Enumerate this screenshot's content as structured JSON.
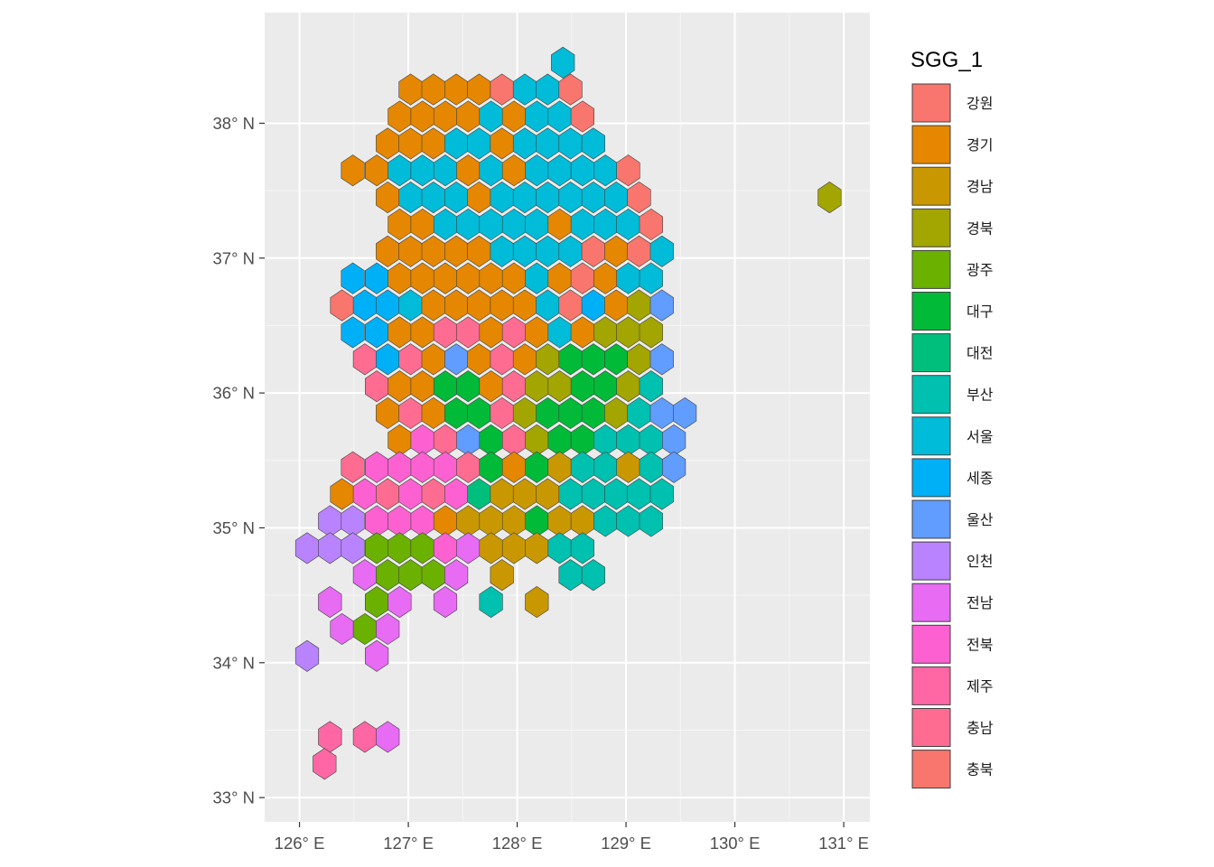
{
  "chart_data": {
    "type": "hexbin-map",
    "xlabel": "",
    "ylabel": "",
    "xlim": [
      125.68,
      131.24
    ],
    "ylim": [
      32.82,
      38.82
    ],
    "x_ticks": [
      126,
      127,
      128,
      129,
      130,
      131
    ],
    "x_tick_labels": [
      "126° E",
      "127° E",
      "128° E",
      "129° E",
      "130° E",
      "131° E"
    ],
    "y_ticks": [
      33,
      34,
      35,
      36,
      37,
      38
    ],
    "y_tick_labels": [
      "33° N",
      "34° N",
      "35° N",
      "36° N",
      "37° N",
      "38° N"
    ],
    "grid": true,
    "panel_background": "#ebebeb",
    "legend": {
      "title": "SGG_1",
      "placement": "right",
      "entries": [
        {
          "label": "강원",
          "color": "#F8766D"
        },
        {
          "label": "경기",
          "color": "#E58700"
        },
        {
          "label": "경남",
          "color": "#C99800"
        },
        {
          "label": "경북",
          "color": "#A3A500"
        },
        {
          "label": "광주",
          "color": "#6BB100"
        },
        {
          "label": "대구",
          "color": "#00BA38"
        },
        {
          "label": "대전",
          "color": "#00BF7D"
        },
        {
          "label": "부산",
          "color": "#00C0AF"
        },
        {
          "label": "서울",
          "color": "#00BCD8"
        },
        {
          "label": "세종",
          "color": "#00B0F6"
        },
        {
          "label": "울산",
          "color": "#619CFF"
        },
        {
          "label": "인천",
          "color": "#B983FF"
        },
        {
          "label": "전남",
          "color": "#E76BF3"
        },
        {
          "label": "전북",
          "color": "#FD61D1"
        },
        {
          "label": "제주",
          "color": "#FF67A4"
        },
        {
          "label": "충남",
          "color": "#FF6C91"
        },
        {
          "label": "충북",
          "color": "#F8766D"
        }
      ]
    },
    "hex_rows": [
      {
        "lat": 38.45,
        "cells": [
          [
            128.42,
            "서울"
          ]
        ]
      },
      {
        "lat": 38.25,
        "cells": [
          [
            127.02,
            "경기"
          ],
          [
            127.23,
            "경기"
          ],
          [
            127.44,
            "경기"
          ],
          [
            127.65,
            "경기"
          ],
          [
            127.86,
            "강원"
          ],
          [
            128.07,
            "서울"
          ],
          [
            128.28,
            "서울"
          ],
          [
            128.49,
            "강원"
          ]
        ]
      },
      {
        "lat": 38.05,
        "cells": [
          [
            126.92,
            "경기"
          ],
          [
            127.13,
            "경기"
          ],
          [
            127.34,
            "경기"
          ],
          [
            127.55,
            "경기"
          ],
          [
            127.76,
            "서울"
          ],
          [
            127.97,
            "경기"
          ],
          [
            128.18,
            "서울"
          ],
          [
            128.39,
            "서울"
          ],
          [
            128.6,
            "강원"
          ]
        ]
      },
      {
        "lat": 37.85,
        "cells": [
          [
            126.81,
            "경기"
          ],
          [
            127.02,
            "경기"
          ],
          [
            127.23,
            "경기"
          ],
          [
            127.44,
            "서울"
          ],
          [
            127.65,
            "서울"
          ],
          [
            127.86,
            "경기"
          ],
          [
            128.07,
            "서울"
          ],
          [
            128.28,
            "서울"
          ],
          [
            128.49,
            "서울"
          ],
          [
            128.7,
            "서울"
          ]
        ]
      },
      {
        "lat": 37.65,
        "cells": [
          [
            126.49,
            "경기"
          ],
          [
            126.71,
            "경기"
          ],
          [
            126.92,
            "서울"
          ],
          [
            127.13,
            "서울"
          ],
          [
            127.34,
            "서울"
          ],
          [
            127.55,
            "경기"
          ],
          [
            127.76,
            "서울"
          ],
          [
            127.97,
            "경기"
          ],
          [
            128.18,
            "서울"
          ],
          [
            128.39,
            "서울"
          ],
          [
            128.6,
            "서울"
          ],
          [
            128.81,
            "서울"
          ],
          [
            129.02,
            "강원"
          ]
        ]
      },
      {
        "lat": 37.45,
        "cells": [
          [
            126.81,
            "경기"
          ],
          [
            127.02,
            "서울"
          ],
          [
            127.23,
            "서울"
          ],
          [
            127.44,
            "서울"
          ],
          [
            127.65,
            "경기"
          ],
          [
            127.86,
            "서울"
          ],
          [
            128.07,
            "서울"
          ],
          [
            128.28,
            "서울"
          ],
          [
            128.49,
            "서울"
          ],
          [
            128.7,
            "서울"
          ],
          [
            128.91,
            "서울"
          ],
          [
            129.12,
            "강원"
          ],
          [
            130.87,
            "경북"
          ]
        ]
      },
      {
        "lat": 37.25,
        "cells": [
          [
            126.92,
            "경기"
          ],
          [
            127.13,
            "경기"
          ],
          [
            127.34,
            "서울"
          ],
          [
            127.55,
            "서울"
          ],
          [
            127.76,
            "서울"
          ],
          [
            127.97,
            "서울"
          ],
          [
            128.18,
            "서울"
          ],
          [
            128.39,
            "경기"
          ],
          [
            128.6,
            "서울"
          ],
          [
            128.81,
            "서울"
          ],
          [
            129.02,
            "서울"
          ],
          [
            129.23,
            "강원"
          ]
        ]
      },
      {
        "lat": 37.05,
        "cells": [
          [
            126.81,
            "경기"
          ],
          [
            127.02,
            "경기"
          ],
          [
            127.23,
            "경기"
          ],
          [
            127.44,
            "경기"
          ],
          [
            127.65,
            "경기"
          ],
          [
            127.86,
            "서울"
          ],
          [
            128.07,
            "서울"
          ],
          [
            128.28,
            "서울"
          ],
          [
            128.49,
            "서울"
          ],
          [
            128.7,
            "강원"
          ],
          [
            128.91,
            "경기"
          ],
          [
            129.12,
            "강원"
          ],
          [
            129.33,
            "서울"
          ]
        ]
      },
      {
        "lat": 36.85,
        "cells": [
          [
            126.49,
            "세종"
          ],
          [
            126.71,
            "세종"
          ],
          [
            126.92,
            "경기"
          ],
          [
            127.13,
            "경기"
          ],
          [
            127.34,
            "경기"
          ],
          [
            127.55,
            "경기"
          ],
          [
            127.76,
            "경기"
          ],
          [
            127.97,
            "경기"
          ],
          [
            128.18,
            "서울"
          ],
          [
            128.39,
            "경기"
          ],
          [
            128.6,
            "충북"
          ],
          [
            128.81,
            "경기"
          ],
          [
            129.02,
            "서울"
          ],
          [
            129.23,
            "서울"
          ]
        ]
      },
      {
        "lat": 36.65,
        "cells": [
          [
            126.39,
            "충북"
          ],
          [
            126.6,
            "세종"
          ],
          [
            126.81,
            "세종"
          ],
          [
            127.02,
            "서울"
          ],
          [
            127.23,
            "경기"
          ],
          [
            127.44,
            "경기"
          ],
          [
            127.65,
            "경기"
          ],
          [
            127.86,
            "경기"
          ],
          [
            128.07,
            "경기"
          ],
          [
            128.28,
            "서울"
          ],
          [
            128.49,
            "충북"
          ],
          [
            128.7,
            "세종"
          ],
          [
            128.91,
            "경기"
          ],
          [
            129.12,
            "경북"
          ],
          [
            129.33,
            "울산"
          ]
        ]
      },
      {
        "lat": 36.45,
        "cells": [
          [
            126.49,
            "세종"
          ],
          [
            126.71,
            "세종"
          ],
          [
            126.92,
            "경기"
          ],
          [
            127.13,
            "경기"
          ],
          [
            127.34,
            "충남"
          ],
          [
            127.55,
            "충남"
          ],
          [
            127.76,
            "경기"
          ],
          [
            127.97,
            "충남"
          ],
          [
            128.18,
            "경기"
          ],
          [
            128.39,
            "서울"
          ],
          [
            128.6,
            "경기"
          ],
          [
            128.81,
            "경북"
          ],
          [
            129.02,
            "경북"
          ],
          [
            129.23,
            "경북"
          ]
        ]
      },
      {
        "lat": 36.25,
        "cells": [
          [
            126.6,
            "충남"
          ],
          [
            126.81,
            "세종"
          ],
          [
            127.02,
            "충남"
          ],
          [
            127.23,
            "경기"
          ],
          [
            127.44,
            "울산"
          ],
          [
            127.65,
            "경기"
          ],
          [
            127.86,
            "충남"
          ],
          [
            128.07,
            "경기"
          ],
          [
            128.28,
            "경북"
          ],
          [
            128.49,
            "대구"
          ],
          [
            128.7,
            "대구"
          ],
          [
            128.91,
            "대구"
          ],
          [
            129.12,
            "경북"
          ],
          [
            129.33,
            "울산"
          ]
        ]
      },
      {
        "lat": 36.05,
        "cells": [
          [
            126.71,
            "충남"
          ],
          [
            126.92,
            "경기"
          ],
          [
            127.13,
            "경기"
          ],
          [
            127.34,
            "대구"
          ],
          [
            127.55,
            "대구"
          ],
          [
            127.76,
            "경기"
          ],
          [
            127.97,
            "충남"
          ],
          [
            128.18,
            "경북"
          ],
          [
            128.39,
            "경북"
          ],
          [
            128.6,
            "대구"
          ],
          [
            128.81,
            "대구"
          ],
          [
            129.02,
            "경북"
          ],
          [
            129.23,
            "부산"
          ]
        ]
      },
      {
        "lat": 35.85,
        "cells": [
          [
            126.81,
            "경기"
          ],
          [
            127.02,
            "충남"
          ],
          [
            127.23,
            "경기"
          ],
          [
            127.44,
            "대구"
          ],
          [
            127.65,
            "대구"
          ],
          [
            127.86,
            "충남"
          ],
          [
            128.07,
            "경북"
          ],
          [
            128.28,
            "대구"
          ],
          [
            128.49,
            "대구"
          ],
          [
            128.7,
            "대구"
          ],
          [
            128.91,
            "경북"
          ],
          [
            129.12,
            "부산"
          ],
          [
            129.33,
            "울산"
          ],
          [
            129.54,
            "울산"
          ]
        ]
      },
      {
        "lat": 35.65,
        "cells": [
          [
            126.92,
            "경기"
          ],
          [
            127.13,
            "전북"
          ],
          [
            127.34,
            "충남"
          ],
          [
            127.55,
            "울산"
          ],
          [
            127.76,
            "대구"
          ],
          [
            127.97,
            "충남"
          ],
          [
            128.18,
            "경북"
          ],
          [
            128.39,
            "대구"
          ],
          [
            128.6,
            "대구"
          ],
          [
            128.81,
            "부산"
          ],
          [
            129.02,
            "부산"
          ],
          [
            129.23,
            "부산"
          ],
          [
            129.44,
            "울산"
          ]
        ]
      },
      {
        "lat": 35.45,
        "cells": [
          [
            126.49,
            "충남"
          ],
          [
            126.71,
            "전북"
          ],
          [
            126.92,
            "전북"
          ],
          [
            127.13,
            "전북"
          ],
          [
            127.34,
            "전북"
          ],
          [
            127.55,
            "충남"
          ],
          [
            127.76,
            "대구"
          ],
          [
            127.97,
            "경기"
          ],
          [
            128.18,
            "대구"
          ],
          [
            128.39,
            "경남"
          ],
          [
            128.6,
            "부산"
          ],
          [
            128.81,
            "부산"
          ],
          [
            129.02,
            "경남"
          ],
          [
            129.23,
            "부산"
          ],
          [
            129.44,
            "울산"
          ]
        ]
      },
      {
        "lat": 35.25,
        "cells": [
          [
            126.39,
            "경기"
          ],
          [
            126.6,
            "전북"
          ],
          [
            126.81,
            "충남"
          ],
          [
            127.02,
            "전북"
          ],
          [
            127.23,
            "충남"
          ],
          [
            127.44,
            "전북"
          ],
          [
            127.65,
            "대전"
          ],
          [
            127.86,
            "경남"
          ],
          [
            128.07,
            "경남"
          ],
          [
            128.28,
            "경남"
          ],
          [
            128.49,
            "부산"
          ],
          [
            128.7,
            "부산"
          ],
          [
            128.91,
            "부산"
          ],
          [
            129.12,
            "부산"
          ],
          [
            129.33,
            "부산"
          ]
        ]
      },
      {
        "lat": 35.05,
        "cells": [
          [
            126.28,
            "인천"
          ],
          [
            126.49,
            "인천"
          ],
          [
            126.71,
            "전북"
          ],
          [
            126.92,
            "전북"
          ],
          [
            127.13,
            "전북"
          ],
          [
            127.34,
            "경기"
          ],
          [
            127.55,
            "경남"
          ],
          [
            127.76,
            "경남"
          ],
          [
            127.97,
            "경남"
          ],
          [
            128.18,
            "대구"
          ],
          [
            128.39,
            "경남"
          ],
          [
            128.6,
            "경남"
          ],
          [
            128.81,
            "부산"
          ],
          [
            129.02,
            "부산"
          ],
          [
            129.23,
            "부산"
          ]
        ]
      },
      {
        "lat": 34.85,
        "cells": [
          [
            126.07,
            "인천"
          ],
          [
            126.28,
            "인천"
          ],
          [
            126.49,
            "인천"
          ],
          [
            126.71,
            "광주"
          ],
          [
            126.92,
            "광주"
          ],
          [
            127.13,
            "광주"
          ],
          [
            127.34,
            "전북"
          ],
          [
            127.55,
            "전남"
          ],
          [
            127.76,
            "경남"
          ],
          [
            127.97,
            "경남"
          ],
          [
            128.18,
            "경남"
          ],
          [
            128.39,
            "부산"
          ],
          [
            128.6,
            "부산"
          ]
        ]
      },
      {
        "lat": 34.65,
        "cells": [
          [
            126.6,
            "전남"
          ],
          [
            126.81,
            "광주"
          ],
          [
            127.02,
            "광주"
          ],
          [
            127.23,
            "광주"
          ],
          [
            127.44,
            "전남"
          ],
          [
            127.86,
            "경남"
          ],
          [
            128.49,
            "부산"
          ],
          [
            128.7,
            "부산"
          ]
        ]
      },
      {
        "lat": 34.45,
        "cells": [
          [
            126.28,
            "전남"
          ],
          [
            126.71,
            "광주"
          ],
          [
            126.92,
            "전남"
          ],
          [
            127.34,
            "전남"
          ],
          [
            127.76,
            "부산"
          ],
          [
            128.18,
            "경남"
          ]
        ]
      },
      {
        "lat": 34.25,
        "cells": [
          [
            126.39,
            "전남"
          ],
          [
            126.6,
            "광주"
          ],
          [
            126.81,
            "전남"
          ]
        ]
      },
      {
        "lat": 34.05,
        "cells": [
          [
            126.07,
            "인천"
          ],
          [
            126.71,
            "전남"
          ]
        ]
      },
      {
        "lat": 33.45,
        "cells": [
          [
            126.28,
            "제주"
          ],
          [
            126.6,
            "제주"
          ],
          [
            126.81,
            "전남"
          ]
        ]
      },
      {
        "lat": 33.25,
        "cells": [
          [
            126.23,
            "제주"
          ]
        ]
      }
    ]
  }
}
